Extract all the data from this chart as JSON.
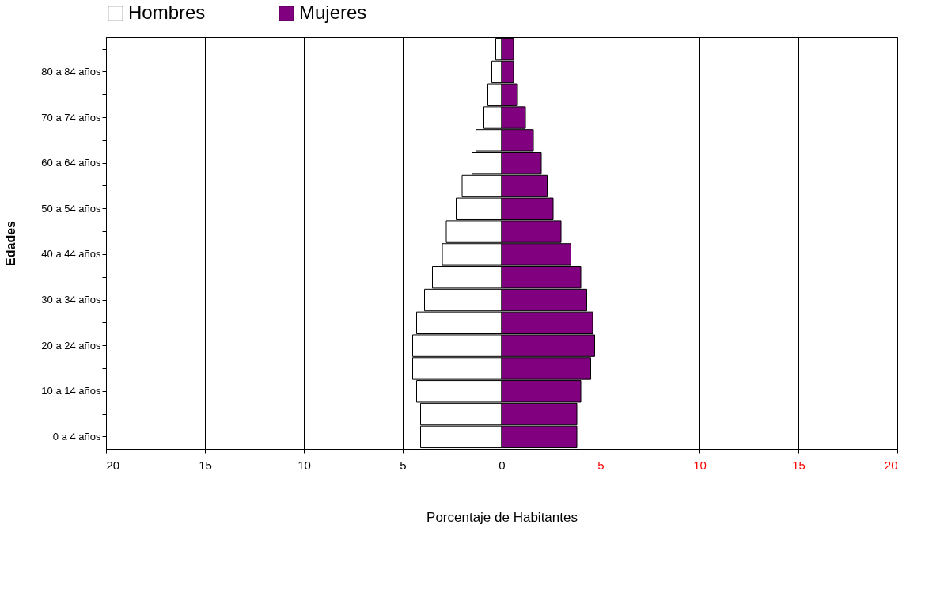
{
  "chart_data": {
    "type": "bar",
    "orientation": "horizontal",
    "xlabel": "Porcentaje de Habitantes",
    "ylabel": "Edades",
    "categories": [
      null,
      "80 a 84 años",
      null,
      "70 a 74 años",
      null,
      "60 a 64 años",
      null,
      "50 a 54 años",
      null,
      "40 a 44 años",
      null,
      "30 a 34 años",
      null,
      "20 a 24 años",
      null,
      "10 a 14 años",
      null,
      "0 a 4 años"
    ],
    "series": [
      {
        "name": "Hombres",
        "color": "#ffffff",
        "values": [
          -0.3,
          -0.5,
          -0.7,
          -0.9,
          -1.3,
          -1.5,
          -2.0,
          -2.3,
          -2.8,
          -3.0,
          -3.5,
          -3.9,
          -4.3,
          -4.5,
          -4.5,
          -4.3,
          -4.1,
          -4.1
        ]
      },
      {
        "name": "Mujeres",
        "color": "#800080",
        "values": [
          0.6,
          0.6,
          0.8,
          1.2,
          1.6,
          2.0,
          2.3,
          2.6,
          3.0,
          3.5,
          4.0,
          4.3,
          4.6,
          4.7,
          4.5,
          4.0,
          3.8,
          3.8
        ]
      }
    ],
    "xlim": [
      -20,
      20
    ],
    "xticks": [
      {
        "value": -20,
        "label": "20"
      },
      {
        "value": -15,
        "label": "15"
      },
      {
        "value": -10,
        "label": "10"
      },
      {
        "value": -5,
        "label": "5"
      },
      0,
      5,
      10,
      15,
      20
    ],
    "grid": "x",
    "legend": "top",
    "stacked": true
  }
}
